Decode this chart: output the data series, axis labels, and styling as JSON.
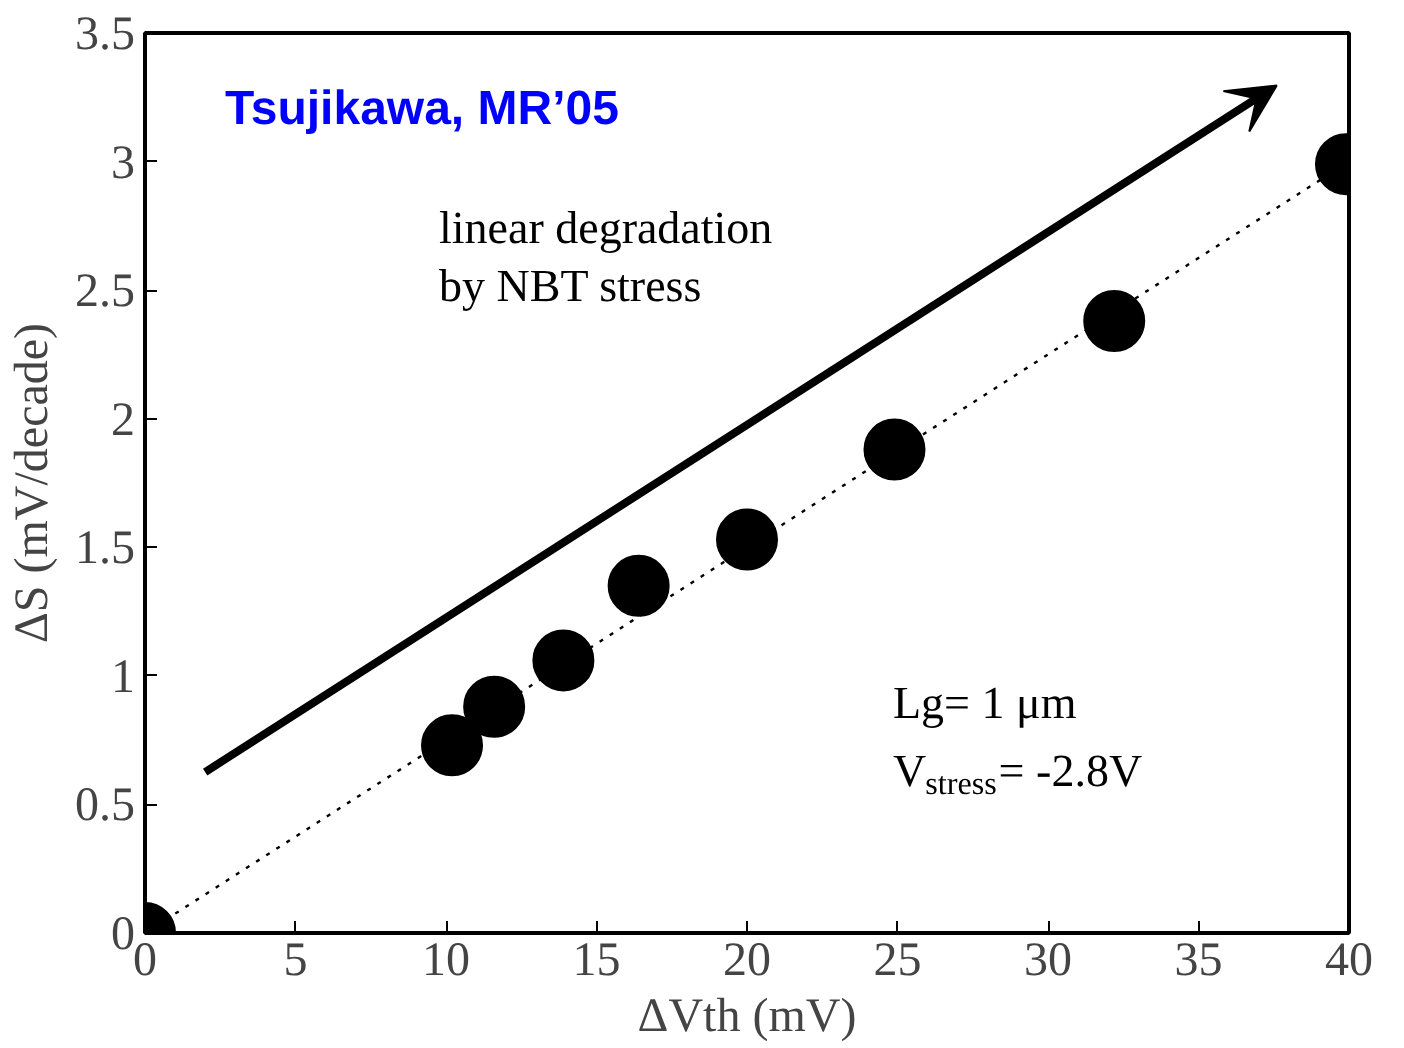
{
  "chart_data": {
    "type": "scatter",
    "xlabel": "ΔVth (mV)",
    "ylabel": "ΔS (mV/decade)",
    "xlim": [
      0,
      40
    ],
    "ylim": [
      0,
      3.5
    ],
    "xticks": [
      0,
      5,
      10,
      15,
      20,
      25,
      30,
      35,
      40
    ],
    "yticks": [
      0,
      0.5,
      1,
      1.5,
      2,
      2.5,
      3,
      3.5
    ],
    "grid": false,
    "series": [
      {
        "marker": "circle",
        "color": "#000000",
        "x": [
          0,
          10.2,
          11.6,
          13.9,
          16.4,
          20.0,
          24.9,
          32.2,
          39.9
        ],
        "values": [
          0,
          0.73,
          0.88,
          1.06,
          1.35,
          1.53,
          1.88,
          2.38,
          2.99
        ]
      },
      {
        "type": "line",
        "color": "#000000",
        "line_style": "dotted",
        "x": [
          0,
          40
        ],
        "values": [
          0,
          3
        ]
      }
    ],
    "annotations": [
      "Tsujikawa, MR’05",
      "linear degradation\nby NBT stress",
      "Lg= 1 μm",
      "V$_{stress}$= -2.8V"
    ]
  }
}
